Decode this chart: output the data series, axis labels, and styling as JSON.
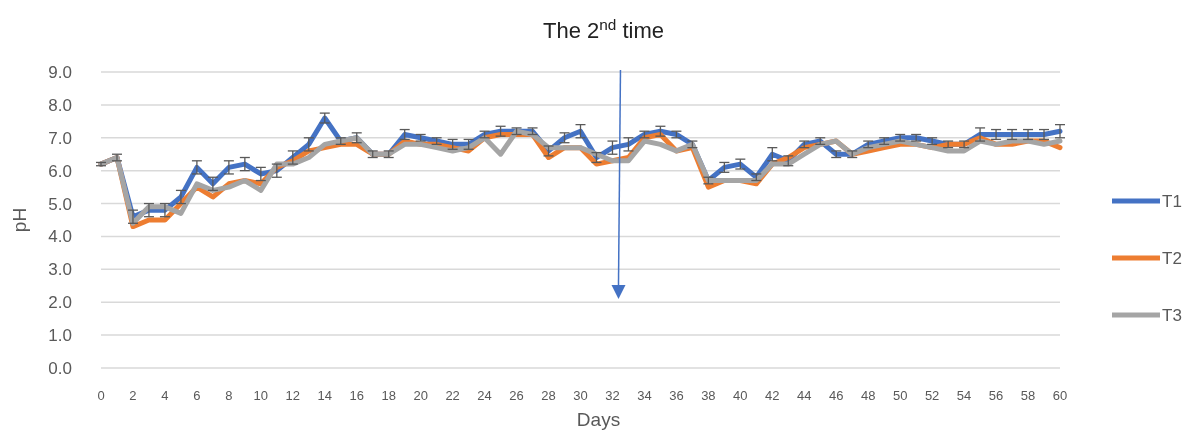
{
  "chart_data": {
    "type": "line",
    "title": "The 2$^{nd}$ time",
    "xlabel": "Days",
    "ylabel": "pH",
    "x": [
      0,
      1,
      2,
      3,
      4,
      5,
      6,
      7,
      8,
      9,
      10,
      11,
      12,
      13,
      14,
      15,
      16,
      17,
      18,
      19,
      20,
      21,
      22,
      23,
      24,
      25,
      26,
      27,
      28,
      29,
      30,
      31,
      32,
      33,
      34,
      35,
      36,
      37,
      38,
      39,
      40,
      41,
      42,
      43,
      44,
      45,
      46,
      47,
      48,
      49,
      50,
      51,
      52,
      53,
      54,
      55,
      56,
      57,
      58,
      59,
      60
    ],
    "xlim": [
      0,
      60
    ],
    "xticks": [
      0,
      2,
      4,
      6,
      8,
      10,
      12,
      14,
      16,
      18,
      20,
      22,
      24,
      26,
      28,
      30,
      32,
      34,
      36,
      38,
      40,
      42,
      44,
      46,
      48,
      50,
      52,
      54,
      56,
      58,
      60
    ],
    "ylim": [
      0,
      9
    ],
    "yticks": [
      {
        "value": 0,
        "label": "0.0"
      },
      {
        "value": 1,
        "label": "1.0"
      },
      {
        "value": 2,
        "label": "2.0"
      },
      {
        "value": 3,
        "label": "3.0"
      },
      {
        "value": 4,
        "label": "4.0"
      },
      {
        "value": 5,
        "label": "5.0"
      },
      {
        "value": 6,
        "label": "6.0"
      },
      {
        "value": 7,
        "label": "7.0"
      },
      {
        "value": 8,
        "label": "8.0"
      },
      {
        "value": 9,
        "label": "9.0"
      }
    ],
    "grid": "y",
    "legend": "right",
    "marker": "none",
    "line_style": "solid",
    "series": [
      {
        "name": "T1",
        "color": "#4472c4",
        "values": [
          6.2,
          6.4,
          4.6,
          4.8,
          4.8,
          5.2,
          6.1,
          5.6,
          6.1,
          6.2,
          5.9,
          6.0,
          6.4,
          6.8,
          7.6,
          6.9,
          7.0,
          6.5,
          6.5,
          7.1,
          7.0,
          6.9,
          6.8,
          6.8,
          7.1,
          7.2,
          7.2,
          7.2,
          6.6,
          7.0,
          7.2,
          6.4,
          6.7,
          6.8,
          7.1,
          7.2,
          7.1,
          6.8,
          5.7,
          6.1,
          6.2,
          5.8,
          6.5,
          6.3,
          6.8,
          6.9,
          6.5,
          6.5,
          6.8,
          6.9,
          7.0,
          7.0,
          6.9,
          6.8,
          6.8,
          7.1,
          7.1,
          7.1,
          7.1,
          7.1,
          7.2
        ],
        "errors": [
          0.05,
          0.1,
          0.2,
          0.2,
          0.2,
          0.2,
          0.2,
          0.2,
          0.2,
          0.2,
          0.2,
          0.2,
          0.2,
          0.2,
          0.15,
          0.1,
          0.15,
          0.1,
          0.1,
          0.15,
          0.1,
          0.1,
          0.15,
          0.15,
          0.1,
          0.15,
          0.1,
          0.1,
          0.15,
          0.15,
          0.2,
          0.15,
          0.2,
          0.2,
          0.1,
          0.15,
          0.1,
          0.1,
          0.1,
          0.15,
          0.15,
          0.1,
          0.2,
          0.15,
          0.1,
          0.1,
          0.1,
          0.1,
          0.1,
          0.1,
          0.1,
          0.1,
          0.1,
          0.1,
          0.1,
          0.2,
          0.15,
          0.15,
          0.15,
          0.15,
          0.2
        ]
      },
      {
        "name": "T2",
        "color": "#ed7d31",
        "values": [
          6.2,
          6.4,
          4.3,
          4.5,
          4.5,
          5.0,
          5.5,
          5.2,
          5.6,
          5.7,
          5.6,
          6.1,
          6.3,
          6.6,
          6.7,
          6.8,
          6.8,
          6.5,
          6.5,
          6.9,
          6.8,
          6.8,
          6.7,
          6.6,
          7.0,
          7.1,
          7.1,
          7.1,
          6.4,
          6.7,
          6.7,
          6.2,
          6.3,
          6.4,
          7.0,
          7.1,
          6.6,
          6.7,
          5.5,
          5.7,
          5.7,
          5.6,
          6.2,
          6.4,
          6.7,
          6.8,
          6.9,
          6.5,
          6.6,
          6.7,
          6.8,
          6.8,
          6.7,
          6.8,
          6.8,
          7.0,
          6.8,
          6.8,
          6.9,
          6.9,
          6.7
        ]
      },
      {
        "name": "T3",
        "color": "#a5a5a5",
        "values": [
          6.2,
          6.4,
          4.4,
          4.9,
          4.9,
          4.7,
          5.6,
          5.4,
          5.5,
          5.7,
          5.4,
          6.2,
          6.2,
          6.4,
          6.8,
          6.9,
          7.0,
          6.5,
          6.5,
          6.8,
          6.8,
          6.7,
          6.6,
          6.7,
          7.0,
          6.5,
          7.2,
          7.1,
          6.7,
          6.7,
          6.7,
          6.5,
          6.3,
          6.3,
          6.9,
          6.8,
          6.6,
          6.8,
          5.7,
          5.7,
          5.7,
          5.7,
          6.2,
          6.2,
          6.5,
          6.8,
          6.9,
          6.5,
          6.7,
          6.8,
          6.9,
          6.8,
          6.7,
          6.6,
          6.6,
          6.9,
          6.8,
          6.9,
          6.9,
          6.8,
          6.9
        ]
      }
    ]
  }
}
